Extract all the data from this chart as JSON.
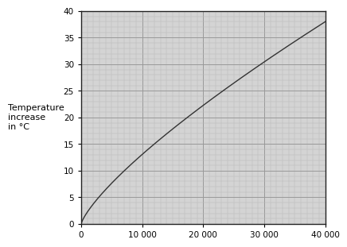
{
  "title": "",
  "ylabel_line1": "Temperature",
  "ylabel_line2": "increase",
  "ylabel_line3": "in °C",
  "xlim": [
    0,
    40000
  ],
  "ylim": [
    0,
    40
  ],
  "xticks_major": [
    0,
    10000,
    20000,
    30000,
    40000
  ],
  "xtick_labels": [
    "0",
    "10 000",
    "20 000",
    "30 000",
    "40 000"
  ],
  "yticks_major": [
    0,
    5,
    10,
    15,
    20,
    25,
    30,
    35,
    40
  ],
  "x_minor_interval": 1000,
  "y_minor_interval": 1,
  "curve_color": "#333333",
  "curve_power": 0.77,
  "background_color": "#ffffff",
  "grid_major_color": "#999999",
  "grid_minor_color": "#bbbbbb",
  "grid_minor_lw": 0.35,
  "grid_major_lw": 0.7,
  "ax_bg_color": "#d4d4d4"
}
